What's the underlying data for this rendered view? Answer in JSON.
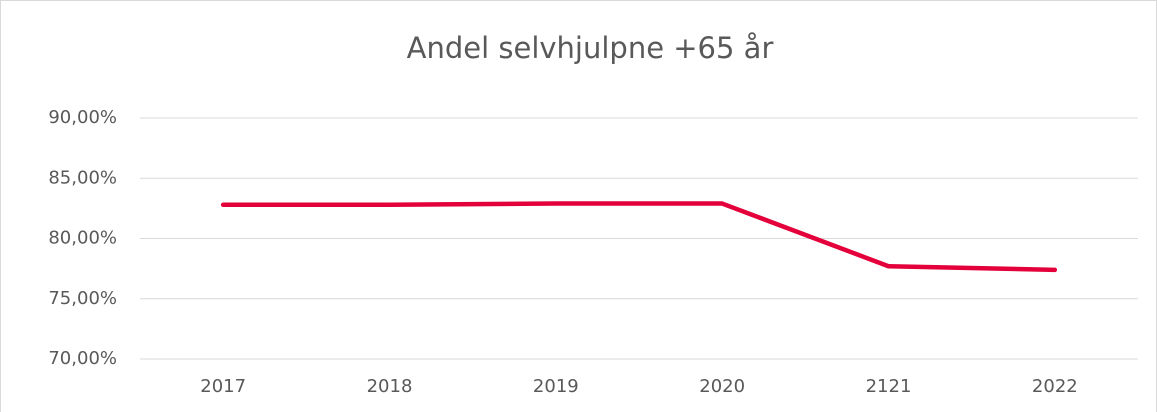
{
  "chart_data": {
    "type": "line",
    "title": "Andel selvhjulpne +65 år",
    "categories": [
      "2017",
      "2018",
      "2019",
      "2020",
      "2121",
      "2022"
    ],
    "series": [
      {
        "name": "Andel selvhjulpne +65 år",
        "color": "#e4003a",
        "values": [
          82.8,
          82.8,
          82.9,
          82.9,
          77.7,
          77.4
        ]
      }
    ],
    "ylim": [
      70,
      90
    ],
    "yticks": [
      {
        "value": 70,
        "label": "70,00%"
      },
      {
        "value": 75,
        "label": "75,00%"
      },
      {
        "value": 80,
        "label": "80,00%"
      },
      {
        "value": 85,
        "label": "85,00%"
      },
      {
        "value": 90,
        "label": "90,00%"
      }
    ],
    "grid": true,
    "legend": false
  }
}
